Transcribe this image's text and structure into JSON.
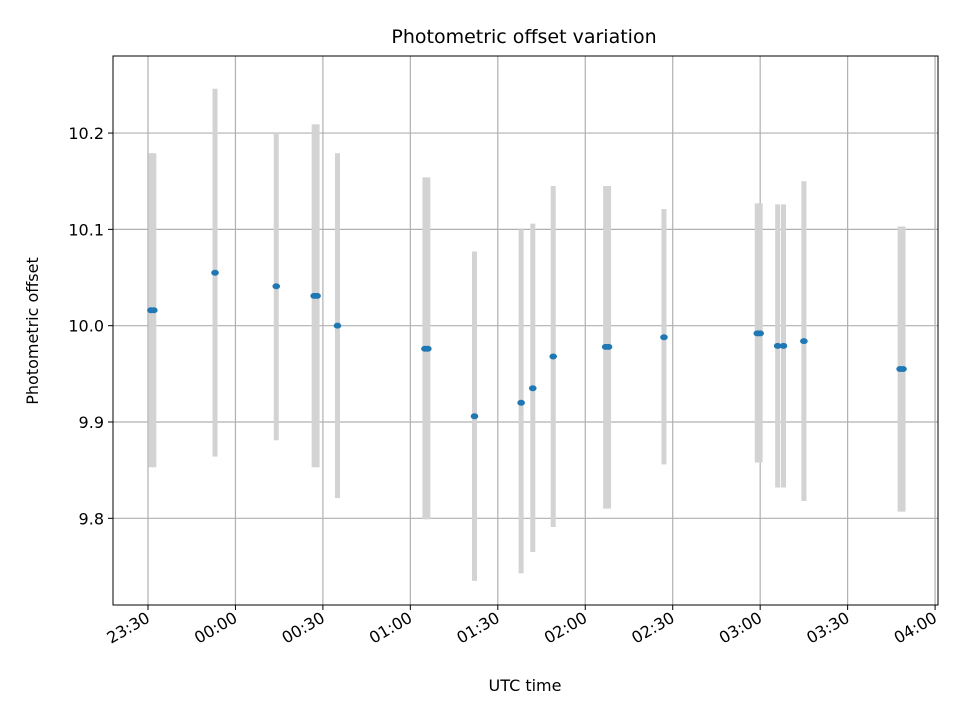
{
  "chart_data": {
    "type": "scatter",
    "title": "Photometric offset variation",
    "xlabel": "UTC time",
    "ylabel": "Photometric offset",
    "x_ticks": [
      "23:30",
      "00:00",
      "00:30",
      "01:00",
      "01:30",
      "02:00",
      "02:30",
      "03:00",
      "03:30",
      "04:00"
    ],
    "y_ticks": [
      "9.8",
      "9.9",
      "10.0",
      "10.1",
      "10.2"
    ],
    "xlim": [
      "23:18",
      "04:01"
    ],
    "ylim": [
      9.71,
      10.28
    ],
    "grid": true,
    "colors": {
      "point": "#1f77b4",
      "errorbar": "#d3d3d3",
      "grid": "#b0b0b0"
    },
    "points": [
      {
        "time": "23:31",
        "offset": 10.016,
        "lower": 9.853,
        "upper": 10.179
      },
      {
        "time": "23:32",
        "offset": 10.016,
        "lower": 9.853,
        "upper": 10.179
      },
      {
        "time": "23:53",
        "offset": 10.055,
        "lower": 9.864,
        "upper": 10.246
      },
      {
        "time": "00:14",
        "offset": 10.041,
        "lower": 9.881,
        "upper": 10.201
      },
      {
        "time": "00:27",
        "offset": 10.031,
        "lower": 9.853,
        "upper": 10.209
      },
      {
        "time": "00:28",
        "offset": 10.031,
        "lower": 9.853,
        "upper": 10.209
      },
      {
        "time": "00:35",
        "offset": 10.0,
        "lower": 9.821,
        "upper": 10.179
      },
      {
        "time": "01:05",
        "offset": 9.976,
        "lower": 9.799,
        "upper": 10.154
      },
      {
        "time": "01:06",
        "offset": 9.976,
        "lower": 9.799,
        "upper": 10.154
      },
      {
        "time": "01:22",
        "offset": 9.906,
        "lower": 9.735,
        "upper": 10.077
      },
      {
        "time": "01:38",
        "offset": 9.92,
        "lower": 9.743,
        "upper": 10.1
      },
      {
        "time": "01:42",
        "offset": 9.935,
        "lower": 9.765,
        "upper": 10.106
      },
      {
        "time": "01:49",
        "offset": 9.968,
        "lower": 9.791,
        "upper": 10.145
      },
      {
        "time": "02:07",
        "offset": 9.978,
        "lower": 9.81,
        "upper": 10.145
      },
      {
        "time": "02:08",
        "offset": 9.978,
        "lower": 9.81,
        "upper": 10.145
      },
      {
        "time": "02:27",
        "offset": 9.988,
        "lower": 9.856,
        "upper": 10.121
      },
      {
        "time": "02:59",
        "offset": 9.992,
        "lower": 9.858,
        "upper": 10.127
      },
      {
        "time": "03:00",
        "offset": 9.992,
        "lower": 9.858,
        "upper": 10.127
      },
      {
        "time": "03:06",
        "offset": 9.979,
        "lower": 9.832,
        "upper": 10.126
      },
      {
        "time": "03:08",
        "offset": 9.979,
        "lower": 9.832,
        "upper": 10.126
      },
      {
        "time": "03:15",
        "offset": 9.984,
        "lower": 9.818,
        "upper": 10.15
      },
      {
        "time": "03:48",
        "offset": 9.955,
        "lower": 9.807,
        "upper": 10.103
      },
      {
        "time": "03:49",
        "offset": 9.955,
        "lower": 9.807,
        "upper": 10.103
      }
    ]
  }
}
